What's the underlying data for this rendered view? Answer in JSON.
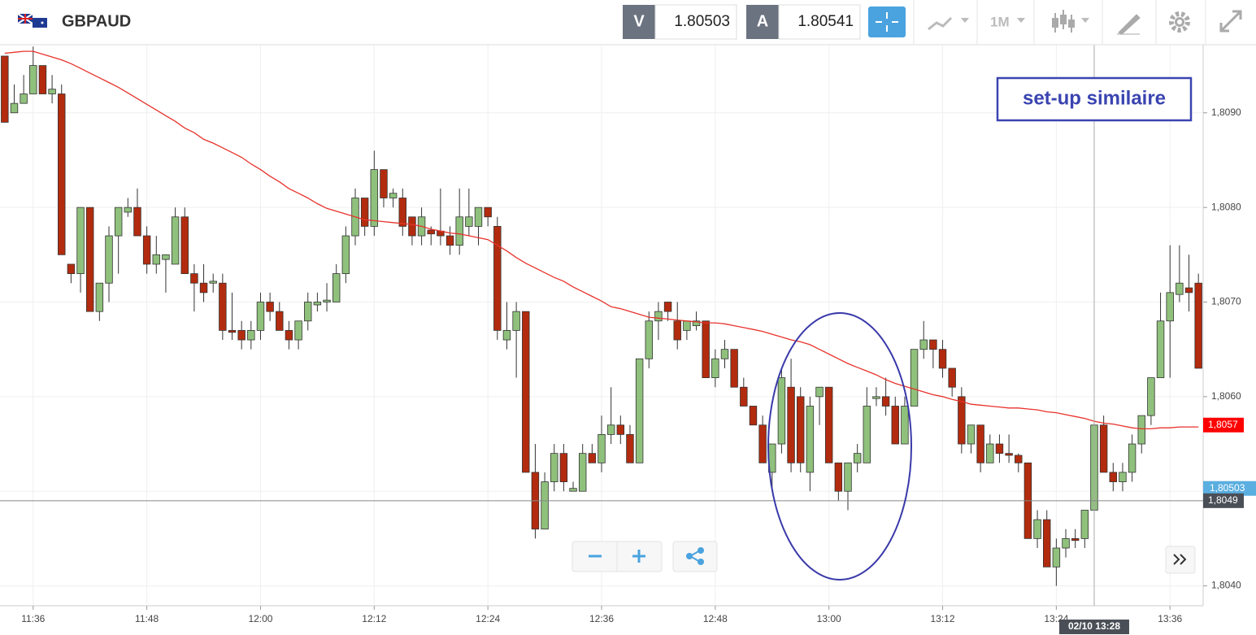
{
  "header": {
    "symbol": "GBPAUD",
    "bid_label": "V",
    "bid": 1.80503,
    "ask_label": "A",
    "ask": 1.80541,
    "timeframe": "1M"
  },
  "chart_data": {
    "type": "candlestick",
    "categories": [
      null,
      null,
      null,
      "11:36",
      null,
      null,
      null,
      null,
      null,
      null,
      null,
      null,
      null,
      null,
      null,
      "11:48",
      null,
      null,
      null,
      null,
      null,
      null,
      null,
      null,
      null,
      null,
      null,
      "12:00",
      null,
      null,
      null,
      null,
      null,
      null,
      null,
      null,
      null,
      null,
      null,
      "12:12",
      null,
      null,
      null,
      null,
      null,
      null,
      null,
      null,
      null,
      null,
      null,
      "12:24",
      null,
      null,
      null,
      null,
      null,
      null,
      null,
      null,
      null,
      null,
      null,
      "12:36",
      null,
      null,
      null,
      null,
      null,
      null,
      null,
      null,
      null,
      null,
      null,
      "12:48",
      null,
      null,
      null,
      null,
      null,
      null,
      null,
      null,
      null,
      null,
      null,
      "13:00",
      null,
      null,
      null,
      null,
      null,
      null,
      null,
      null,
      null,
      null,
      null,
      "13:12",
      null,
      null,
      null,
      null,
      null,
      null,
      null,
      null,
      null,
      null,
      null,
      "13:24",
      null,
      null,
      null,
      null,
      null,
      null,
      null,
      null,
      null,
      null,
      null,
      "13:36",
      null,
      null,
      null
    ],
    "open": [
      1.8096,
      1.809,
      1.8091,
      1.8092,
      1.8095,
      1.8092,
      1.8092,
      1.8074,
      1.8073,
      1.808,
      1.8069,
      1.8072,
      1.8077,
      1.80795,
      1.808,
      1.8077,
      1.8074,
      1.80745,
      1.8074,
      1.8079,
      1.8073,
      1.8072,
      1.8072,
      1.8072,
      1.8067,
      1.8067,
      1.8066,
      1.8067,
      1.807,
      1.8069,
      1.8067,
      1.8066,
      1.8068,
      1.80697,
      1.807,
      1.807,
      1.8073,
      1.8077,
      1.8081,
      1.8078,
      1.8084,
      1.8081,
      1.8081,
      1.8079,
      1.8077,
      1.80776,
      1.80775,
      1.8077,
      1.8076,
      1.8078,
      1.8078,
      1.808,
      1.8078,
      1.8066,
      1.8067,
      1.8069,
      1.8052,
      1.8046,
      1.8051,
      1.8054,
      1.805,
      1.805,
      1.8054,
      1.8053,
      1.8056,
      1.8057,
      1.8056,
      1.8053,
      1.8064,
      1.8068,
      1.807,
      1.8068,
      1.8067,
      1.80675,
      1.8068,
      1.8062,
      1.8064,
      1.8065,
      1.8061,
      1.8059,
      1.8057,
      1.8052,
      1.8055,
      1.8061,
      1.806,
      1.8052,
      1.806,
      1.8061,
      1.8053,
      1.805,
      1.8053,
      1.8053,
      1.80598,
      1.806,
      1.8059,
      1.8055,
      1.8059,
      1.8065,
      1.8066,
      1.8065,
      1.8063,
      1.806,
      1.8055,
      1.8057,
      1.8053,
      1.8055,
      1.8054,
      1.80538,
      1.8053,
      1.8045,
      1.8047,
      1.8042,
      1.8044,
      1.8045,
      1.8045,
      1.8048,
      1.8057,
      1.8052,
      1.8051,
      1.8052,
      1.8055,
      1.8058,
      1.8062,
      1.8068,
      1.80708,
      1.80715,
      1.8072
    ],
    "high": [
      1.8096,
      1.8093,
      1.8094,
      1.8097,
      1.8095,
      1.8094,
      1.8093,
      1.8074,
      1.808,
      1.808,
      1.8072,
      1.8078,
      1.808,
      1.8081,
      1.8082,
      1.8078,
      1.8077,
      1.8075,
      1.808,
      1.808,
      1.8074,
      1.8074,
      1.8073,
      1.8073,
      1.8071,
      1.8068,
      1.8068,
      1.8071,
      1.8071,
      1.807,
      1.8068,
      1.8068,
      1.8071,
      1.8071,
      1.8072,
      1.8074,
      1.8078,
      1.8082,
      1.8081,
      1.8086,
      1.8084,
      1.8082,
      1.8082,
      1.8079,
      1.808,
      1.8078,
      1.8082,
      1.8078,
      1.8082,
      1.8082,
      1.808,
      1.808,
      1.8079,
      1.807,
      1.807,
      1.8069,
      1.8055,
      1.8052,
      1.8055,
      1.8055,
      1.8051,
      1.8055,
      1.8055,
      1.8058,
      1.8061,
      1.8058,
      1.8057,
      1.8064,
      1.8069,
      1.807,
      1.807,
      1.807,
      1.8068,
      1.8069,
      1.8068,
      1.8065,
      1.8066,
      1.8065,
      1.8062,
      1.8059,
      1.8058,
      1.8055,
      1.8063,
      1.8064,
      1.8061,
      1.806,
      1.8061,
      1.8061,
      1.8053,
      1.8053,
      1.8055,
      1.8061,
      1.8061,
      1.8062,
      1.806,
      1.806,
      1.8065,
      1.8068,
      1.8066,
      1.8066,
      1.8063,
      1.8061,
      1.8057,
      1.8057,
      1.8056,
      1.8056,
      1.8056,
      1.8054,
      1.8053,
      1.8048,
      1.8048,
      1.8045,
      1.8046,
      1.8046,
      1.8048,
      1.8058,
      1.8058,
      1.8053,
      1.8053,
      1.8056,
      1.8058,
      1.8062,
      1.8071,
      1.8076,
      1.8076,
      1.8075,
      1.8073
    ],
    "low": [
      1.8089,
      1.809,
      1.8091,
      1.8092,
      1.8092,
      1.8091,
      1.8075,
      1.8072,
      1.8071,
      1.8069,
      1.8068,
      1.807,
      1.8073,
      1.8079,
      1.8077,
      1.8073,
      1.8073,
      1.8071,
      1.8074,
      1.8073,
      1.8069,
      1.807,
      1.8071,
      1.8066,
      1.8066,
      1.8065,
      1.8065,
      1.8066,
      1.8068,
      1.8067,
      1.8065,
      1.8065,
      1.8067,
      1.8069,
      1.8069,
      1.807,
      1.8072,
      1.8076,
      1.8077,
      1.8077,
      1.808,
      1.808,
      1.8077,
      1.8076,
      1.8076,
      1.8076,
      1.8076,
      1.8075,
      1.8075,
      1.8077,
      1.8076,
      1.8078,
      1.8066,
      1.8065,
      1.8062,
      1.8052,
      1.8045,
      1.8046,
      1.805,
      1.805,
      1.805,
      1.805,
      1.8053,
      1.8052,
      1.8055,
      1.8055,
      1.8053,
      1.8053,
      1.8063,
      1.8066,
      1.8068,
      1.8065,
      1.8066,
      1.8067,
      1.8062,
      1.8061,
      1.8063,
      1.8061,
      1.8059,
      1.8057,
      1.8053,
      1.805,
      1.8054,
      1.8052,
      1.8052,
      1.805,
      1.8057,
      1.8053,
      1.8049,
      1.8048,
      1.8052,
      1.8053,
      1.8059,
      1.8058,
      1.8055,
      1.8055,
      1.8059,
      1.8064,
      1.8063,
      1.8062,
      1.806,
      1.8054,
      1.8054,
      1.8052,
      1.8053,
      1.8053,
      1.8053,
      1.8052,
      1.8045,
      1.8044,
      1.8042,
      1.804,
      1.8043,
      1.8044,
      1.8044,
      1.8047,
      1.8052,
      1.805,
      1.805,
      1.8051,
      1.8054,
      1.8057,
      1.8062,
      1.8062,
      1.807,
      1.8069,
      1.8063
    ],
    "close": [
      1.8089,
      1.8091,
      1.8092,
      1.8095,
      1.8092,
      1.80925,
      1.8075,
      1.8073,
      1.808,
      1.8069,
      1.8072,
      1.8077,
      1.808,
      1.808,
      1.8077,
      1.8074,
      1.8075,
      1.8075,
      1.8079,
      1.8073,
      1.8072,
      1.8071,
      1.80722,
      1.8067,
      1.80668,
      1.8066,
      1.8067,
      1.807,
      1.8069,
      1.8067,
      1.8066,
      1.8068,
      1.807,
      1.807,
      1.80702,
      1.8073,
      1.8077,
      1.8081,
      1.8078,
      1.8084,
      1.8081,
      1.80815,
      1.8078,
      1.8077,
      1.8079,
      1.80772,
      1.8077,
      1.8076,
      1.8079,
      1.8079,
      1.808,
      1.8079,
      1.8067,
      1.8067,
      1.8069,
      1.8052,
      1.8046,
      1.8051,
      1.8054,
      1.8051,
      1.80503,
      1.8054,
      1.8053,
      1.8056,
      1.8057,
      1.8056,
      1.8053,
      1.8064,
      1.8068,
      1.8069,
      1.8069,
      1.8066,
      1.8068,
      1.8068,
      1.8062,
      1.8064,
      1.8065,
      1.8061,
      1.8059,
      1.8057,
      1.8053,
      1.8055,
      1.8062,
      1.8053,
      1.8053,
      1.8059,
      1.8061,
      1.8053,
      1.805,
      1.8053,
      1.8054,
      1.8059,
      1.806,
      1.8059,
      1.8055,
      1.8059,
      1.8065,
      1.8066,
      1.8065,
      1.8063,
      1.8061,
      1.8055,
      1.8057,
      1.8053,
      1.8055,
      1.8054,
      1.80538,
      1.8053,
      1.8045,
      1.8047,
      1.8042,
      1.8044,
      1.8045,
      1.80448,
      1.8048,
      1.8057,
      1.8052,
      1.8051,
      1.8052,
      1.8055,
      1.8058,
      1.8062,
      1.8068,
      1.8071,
      1.8072,
      1.8071,
      1.8063
    ],
    "up_color": "#8fc17c",
    "down_color": "#b32b0e",
    "ma": {
      "color": "#e8322b",
      "values": [
        1.80963,
        1.80964,
        1.80965,
        1.80965,
        1.80962,
        1.80959,
        1.80956,
        1.80952,
        1.80947,
        1.80942,
        1.80937,
        1.80932,
        1.80927,
        1.80921,
        1.80915,
        1.80909,
        1.80903,
        1.80897,
        1.80891,
        1.80884,
        1.80879,
        1.80872,
        1.80868,
        1.80863,
        1.80858,
        1.80853,
        1.80846,
        1.8084,
        1.80833,
        1.80827,
        1.8082,
        1.80815,
        1.8081,
        1.80804,
        1.80799,
        1.80796,
        1.80793,
        1.8079,
        1.80787,
        1.80786,
        1.80785,
        1.80784,
        1.80783,
        1.80782,
        1.8078,
        1.80777,
        1.80775,
        1.80773,
        1.80772,
        1.8077,
        1.80768,
        1.80766,
        1.8076,
        1.80754,
        1.80747,
        1.80741,
        1.80736,
        1.80731,
        1.80726,
        1.80722,
        1.80716,
        1.80711,
        1.80706,
        1.80701,
        1.80695,
        1.80693,
        1.8069,
        1.80687,
        1.80684,
        1.80683,
        1.80682,
        1.80681,
        1.8068,
        1.80679,
        1.80678,
        1.80678,
        1.80677,
        1.80675,
        1.80673,
        1.80671,
        1.80669,
        1.80666,
        1.80663,
        1.8066,
        1.80658,
        1.80655,
        1.8065,
        1.80645,
        1.8064,
        1.80635,
        1.80631,
        1.80627,
        1.80623,
        1.80618,
        1.80614,
        1.80611,
        1.80608,
        1.80605,
        1.80602,
        1.806,
        1.80597,
        1.80595,
        1.80592,
        1.80591,
        1.8059,
        1.80589,
        1.80588,
        1.80588,
        1.80587,
        1.80586,
        1.80584,
        1.80583,
        1.80581,
        1.80579,
        1.80577,
        1.80574,
        1.80572,
        1.80571,
        1.80569,
        1.80567,
        1.80566,
        1.80566,
        1.80567,
        1.80567,
        1.80568,
        1.80568,
        1.80568
      ],
      "last": {
        "value": 1.8057,
        "label": "1,8057"
      }
    },
    "ylim": [
      1.80379,
      1.80972
    ],
    "yticks": [
      {
        "value": 1.804,
        "label": "1,8040"
      },
      {
        "value": 1.805,
        "label": "1,8050"
      },
      {
        "value": 1.806,
        "label": "1,8060"
      },
      {
        "value": 1.807,
        "label": "1,8070"
      },
      {
        "value": 1.808,
        "label": "1,8080"
      },
      {
        "value": 1.809,
        "label": "1,8090"
      }
    ],
    "grid": true,
    "bid_line": {
      "value": 1.80503,
      "label": "1,80503",
      "color": "#5aaee0"
    },
    "crosshair": {
      "x_label": "02/10 13:28",
      "y": {
        "value": 1.8049,
        "label": "1,8049"
      }
    },
    "annotation": "set-up similaire"
  }
}
